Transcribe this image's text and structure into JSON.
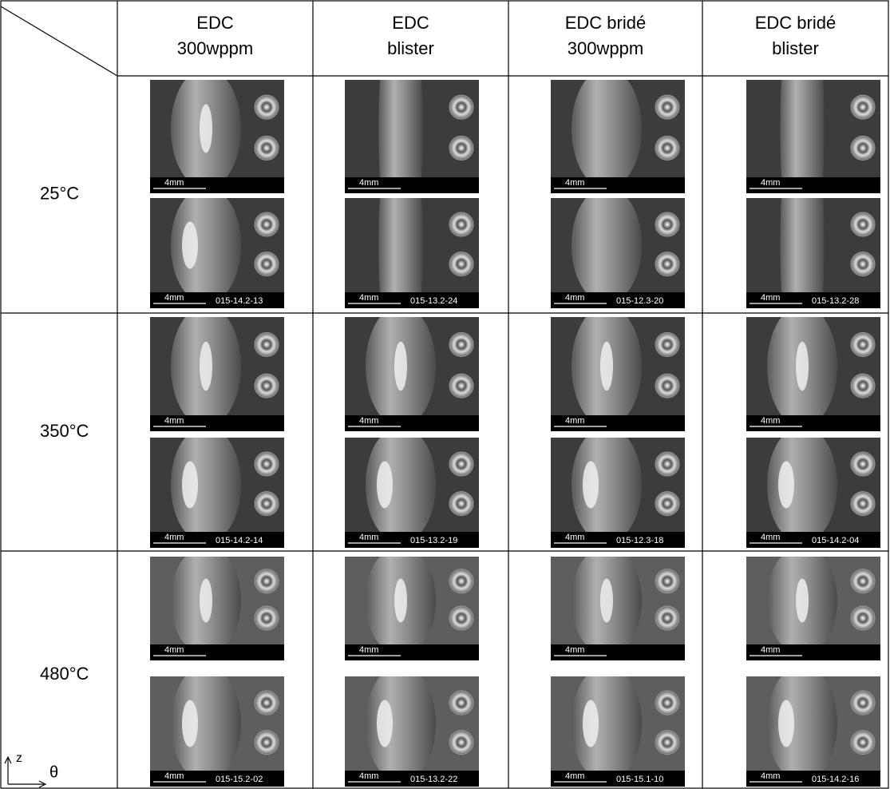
{
  "header": {
    "columns": [
      {
        "line1": "EDC",
        "line2": "300wppm"
      },
      {
        "line1": "EDC",
        "line2": "blister"
      },
      {
        "line1": "EDC bridé",
        "line2": "300wppm"
      },
      {
        "line1": "EDC bridé",
        "line2": "blister"
      }
    ]
  },
  "rows": [
    {
      "label": "25°C",
      "cells": [
        {
          "top_scale": "4mm",
          "bottom_scale": "4mm",
          "id": "015-14.2-13"
        },
        {
          "top_scale": "4mm",
          "bottom_scale": "4mm",
          "id": "015-13.2-24"
        },
        {
          "top_scale": "4mm",
          "bottom_scale": "4mm",
          "id": "015-12.3-20"
        },
        {
          "top_scale": "4mm",
          "bottom_scale": "4mm",
          "id": "015-13.2-28"
        }
      ]
    },
    {
      "label": "350°C",
      "cells": [
        {
          "top_scale": "4mm",
          "bottom_scale": "4mm",
          "id": "015-14.2-14"
        },
        {
          "top_scale": "4mm",
          "bottom_scale": "4mm",
          "id": "015-13.2-19"
        },
        {
          "top_scale": "4mm",
          "bottom_scale": "4mm",
          "id": "015-12.3-18"
        },
        {
          "top_scale": "4mm",
          "bottom_scale": "4mm",
          "id": "015-14.2-04"
        }
      ]
    },
    {
      "label": "480°C",
      "cells": [
        {
          "top_scale": "4mm",
          "bottom_scale": "4mm",
          "id": "015-15.2-02"
        },
        {
          "top_scale": "4mm",
          "bottom_scale": "4mm",
          "id": "015-13.2-22"
        },
        {
          "top_scale": "4mm",
          "bottom_scale": "4mm",
          "id": "015-15.1-10"
        },
        {
          "top_scale": "4mm",
          "bottom_scale": "4mm",
          "id": "015-14.2-16"
        }
      ]
    }
  ],
  "axes": {
    "z": "z",
    "theta": "θ"
  }
}
